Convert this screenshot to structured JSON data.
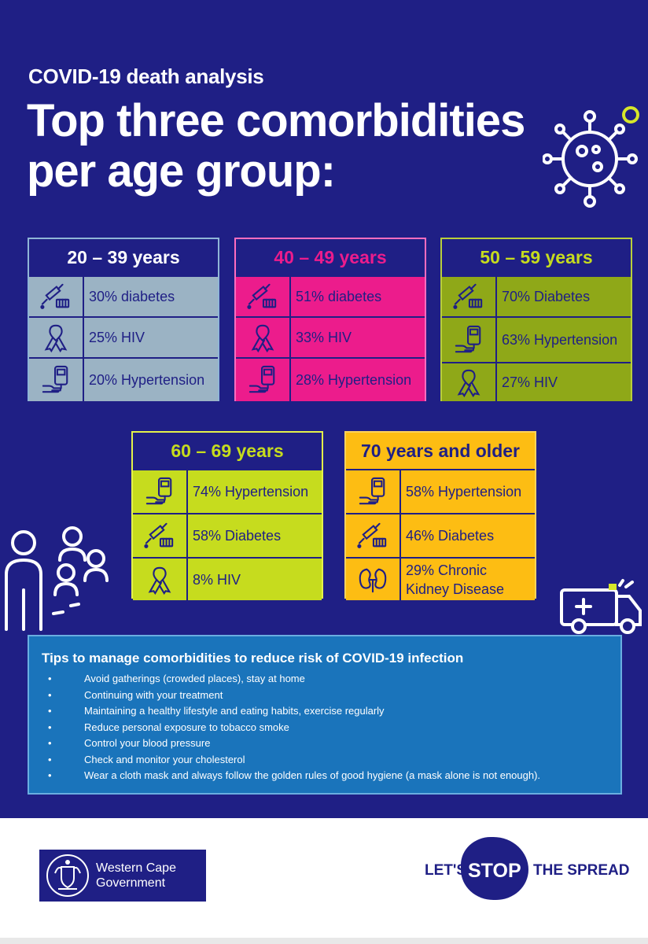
{
  "header": {
    "subtitle": "COVID-19 death analysis",
    "title": "Top three comorbidities per age group:"
  },
  "groups": [
    {
      "label": "20 – 39 years",
      "items": [
        {
          "icon": "syringe-icon",
          "text": "30% diabetes"
        },
        {
          "icon": "ribbon-icon",
          "text": "25% HIV"
        },
        {
          "icon": "blood-pressure-icon",
          "text": "20% Hypertension"
        }
      ]
    },
    {
      "label": "40 – 49 years",
      "items": [
        {
          "icon": "syringe-icon",
          "text": "51% diabetes"
        },
        {
          "icon": "ribbon-icon",
          "text": "33% HIV"
        },
        {
          "icon": "blood-pressure-icon",
          "text": "28% Hypertension"
        }
      ]
    },
    {
      "label": "50 – 59 years",
      "items": [
        {
          "icon": "syringe-icon",
          "text": "70% Diabetes"
        },
        {
          "icon": "blood-pressure-icon",
          "text": "63% Hypertension"
        },
        {
          "icon": "ribbon-icon",
          "text": "27% HIV"
        }
      ]
    },
    {
      "label": "60 – 69 years",
      "items": [
        {
          "icon": "blood-pressure-icon",
          "text": "74% Hypertension"
        },
        {
          "icon": "syringe-icon",
          "text": "58% Diabetes"
        },
        {
          "icon": "ribbon-icon",
          "text": "8% HIV"
        }
      ]
    },
    {
      "label": "70 years and older",
      "items": [
        {
          "icon": "blood-pressure-icon",
          "text": "58% Hypertension"
        },
        {
          "icon": "syringe-icon",
          "text": "46% Diabetes"
        },
        {
          "icon": "kidney-icon",
          "text": "29% Chronic Kidney Disease"
        }
      ]
    }
  ],
  "tips": {
    "title": "Tips to manage comorbidities to reduce risk of COVID-19 infection",
    "items": [
      "Avoid gatherings (crowded places), stay at home",
      "Continuing with your treatment",
      "Maintaining a healthy lifestyle and eating habits, exercise regularly",
      "Reduce personal exposure to tobacco smoke",
      "Control your blood pressure",
      "Check and monitor your cholesterol",
      "Wear a cloth mask and always follow the golden rules of good hygiene (a mask alone is not enough)."
    ]
  },
  "footer": {
    "org_line1": "Western Cape",
    "org_line2": "Government",
    "lets": "LET'S",
    "stop": "STOP",
    "spread": "THE SPREAD"
  },
  "colors": {
    "background": "#1f1f85",
    "grey_blue": "#9bb3c4",
    "magenta": "#ec1c8c",
    "olive": "#8fa818",
    "lime": "#c6dc1e",
    "amber": "#fdbd13",
    "tips_blue": "#1a74bb"
  }
}
